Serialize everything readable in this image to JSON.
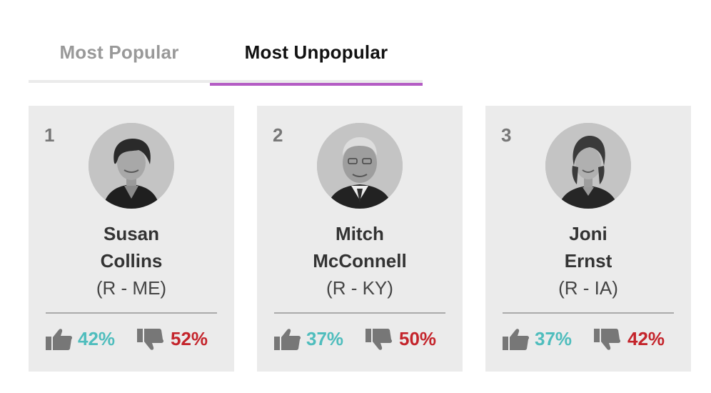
{
  "tabs": [
    {
      "label": "Most Popular",
      "active": false
    },
    {
      "label": "Most Unpopular",
      "active": true
    }
  ],
  "colors": {
    "accent_underline": "#b45cc4",
    "approve": "#4fbdbd",
    "disapprove": "#c4242b",
    "card_background": "#ebebeb"
  },
  "senators": [
    {
      "rank": "1",
      "first_name": "Susan",
      "last_name": "Collins",
      "party_state": "(R - ME)",
      "approve": "42%",
      "disapprove": "52%",
      "icon_up": "thumbs-up-icon",
      "icon_down": "thumbs-down-icon"
    },
    {
      "rank": "2",
      "first_name": "Mitch",
      "last_name": "McConnell",
      "party_state": "(R - KY)",
      "approve": "37%",
      "disapprove": "50%",
      "icon_up": "thumbs-up-icon",
      "icon_down": "thumbs-down-icon"
    },
    {
      "rank": "3",
      "first_name": "Joni",
      "last_name": "Ernst",
      "party_state": "(R - IA)",
      "approve": "37%",
      "disapprove": "42%",
      "icon_up": "thumbs-up-icon",
      "icon_down": "thumbs-down-icon"
    }
  ]
}
